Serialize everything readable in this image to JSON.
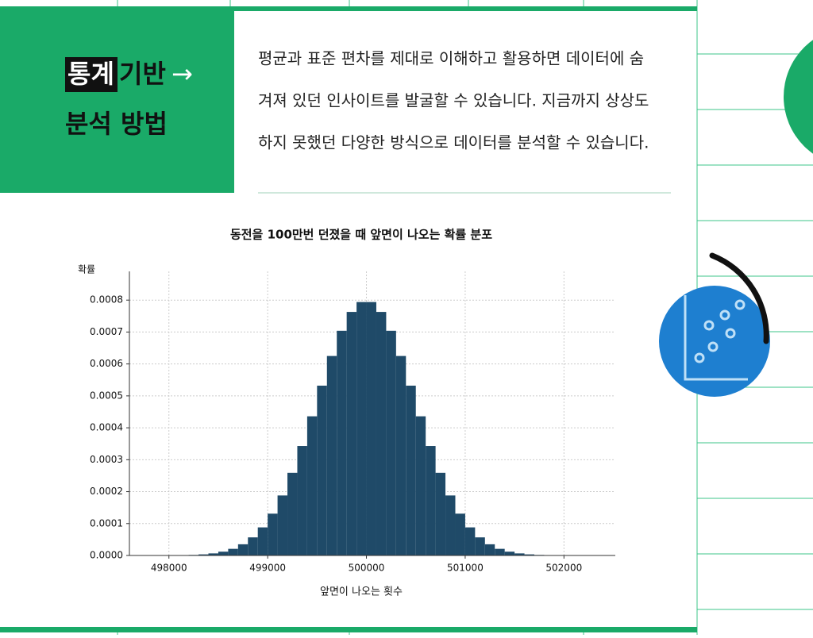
{
  "header": {
    "highlight": "통계",
    "title_rest": "기반",
    "arrow": "→",
    "title_line2": "분석 방법"
  },
  "description": [
    "평균과 표준 편차를 제대로 이해하고 활용하면 데이터에 숨",
    "겨져 있던 인사이트를 발굴할 수 있습니다. 지금까지 상상도",
    "하지 못했던 다양한 방식으로 데이터를 분석할 수 있습니다."
  ],
  "chart_data": {
    "type": "histogram",
    "title": "동전을 100만번 던졌을 때 앞면이 나오는 확률 분포",
    "x_label": "앞면이 나오는 횟수",
    "y_label": "확률",
    "color": "#1f4a68",
    "grid": true,
    "bins": [
      498000,
      498100,
      498200,
      498300,
      498400,
      498500,
      498600,
      498700,
      498800,
      498900,
      499000,
      499100,
      499200,
      499300,
      499400,
      499500,
      499600,
      499700,
      499800,
      499900,
      500000,
      500100,
      500200,
      500300,
      500400,
      500500,
      500600,
      500700,
      500800,
      500900,
      501000,
      501100,
      501200,
      501300,
      501400,
      501500,
      501600,
      501700,
      501800,
      501900,
      502000
    ],
    "values": [
      4e-07,
      9e-07,
      1.7e-06,
      3.4e-06,
      6.5e-06,
      1.19e-05,
      2.08e-05,
      3.51e-05,
      5.67e-05,
      8.8e-05,
      0.000131,
      0.000188,
      0.000259,
      0.000343,
      0.000436,
      0.000532,
      0.000625,
      0.000704,
      0.000763,
      0.000794,
      0.000794,
      0.000763,
      0.000704,
      0.000625,
      0.000532,
      0.000436,
      0.000343,
      0.000259,
      0.000188,
      0.000131,
      8.8e-05,
      5.67e-05,
      3.51e-05,
      2.08e-05,
      1.19e-05,
      6.5e-06,
      3.4e-06,
      1.7e-06,
      9e-07,
      4e-07
    ],
    "xlim": [
      497600,
      502520
    ],
    "ylim": [
      0,
      0.00089
    ],
    "xticks": [
      498000,
      499000,
      500000,
      501000,
      502000
    ],
    "yticks": [
      {
        "value": 0,
        "label": "0.0000"
      },
      {
        "value": 0.0001,
        "label": "0.0001"
      },
      {
        "value": 0.0002,
        "label": "0.0002"
      },
      {
        "value": 0.0003,
        "label": "0.0003"
      },
      {
        "value": 0.0004,
        "label": "0.0004"
      },
      {
        "value": 0.0005,
        "label": "0.0005"
      },
      {
        "value": 0.0006,
        "label": "0.0006"
      },
      {
        "value": 0.0007,
        "label": "0.0007"
      },
      {
        "value": 0.0008,
        "label": "0.0008"
      }
    ]
  }
}
